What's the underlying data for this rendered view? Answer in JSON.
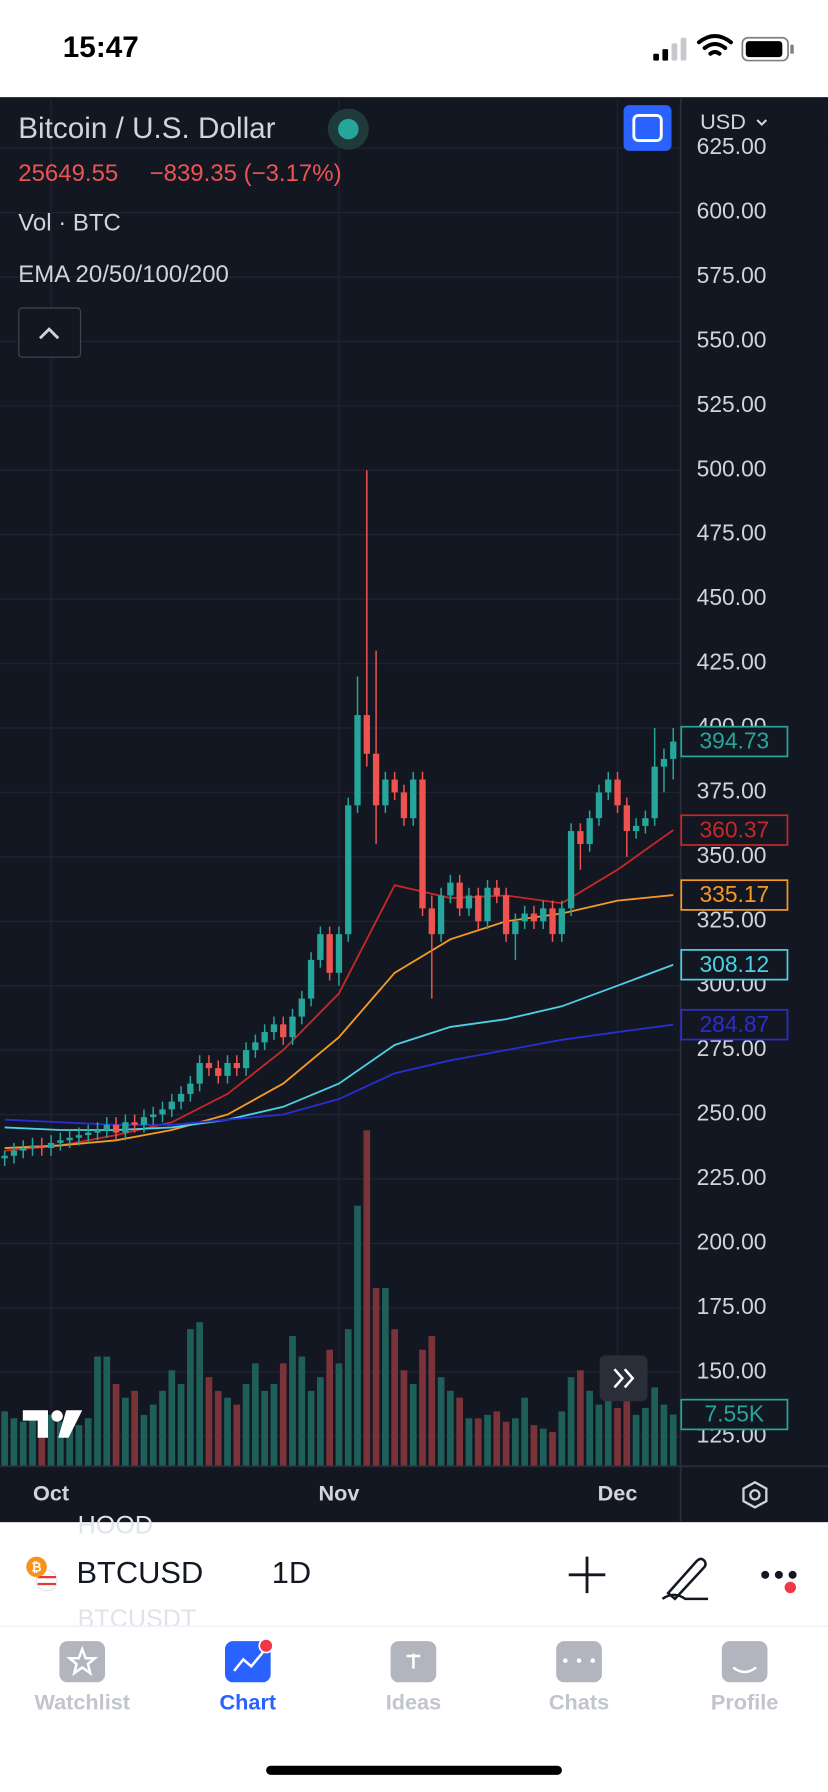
{
  "status_bar": {
    "time": "15:47"
  },
  "header": {
    "symbol_name": "Bitcoin / U.S. Dollar",
    "last_price": "25649.55",
    "change": "−839.35 (−3.17%)",
    "volume_indicator": "Vol · BTC",
    "ema_indicator": "EMA 20/50/100/200",
    "currency": "USD"
  },
  "chart_data": {
    "type": "candlestick",
    "up_color": "#26a69a",
    "down_color": "#ef5350",
    "open": [
      233,
      234,
      236,
      237,
      238,
      237,
      239,
      240,
      241,
      242,
      243,
      244,
      246,
      243,
      247,
      246,
      249,
      250,
      252,
      255,
      258,
      262,
      270,
      268,
      265,
      270,
      268,
      275,
      278,
      282,
      285,
      280,
      288,
      295,
      310,
      320,
      305,
      320,
      370,
      405,
      390,
      370,
      380,
      375,
      365,
      380,
      330,
      320,
      335,
      340,
      330,
      335,
      325,
      338,
      335,
      320,
      325,
      328,
      325,
      330,
      320,
      330,
      360,
      355,
      365,
      375,
      380,
      370,
      360,
      362,
      365,
      385,
      388
    ],
    "high": [
      236,
      239,
      240,
      241,
      241,
      242,
      243,
      244,
      245,
      246,
      247,
      249,
      249,
      250,
      250,
      252,
      253,
      255,
      258,
      261,
      265,
      273,
      273,
      271,
      273,
      273,
      278,
      281,
      285,
      288,
      288,
      291,
      298,
      313,
      323,
      323,
      323,
      373,
      420,
      500,
      430,
      383,
      383,
      378,
      383,
      383,
      335,
      338,
      343,
      343,
      338,
      338,
      341,
      341,
      338,
      328,
      331,
      331,
      333,
      333,
      333,
      363,
      363,
      368,
      378,
      383,
      383,
      373,
      365,
      368,
      400,
      392,
      400
    ],
    "low": [
      230,
      231,
      233,
      234,
      234,
      234,
      236,
      237,
      238,
      239,
      240,
      241,
      240,
      240,
      243,
      243,
      246,
      247,
      249,
      252,
      255,
      259,
      265,
      262,
      262,
      265,
      265,
      272,
      275,
      279,
      277,
      277,
      285,
      292,
      307,
      302,
      300,
      317,
      367,
      385,
      355,
      367,
      372,
      362,
      362,
      327,
      295,
      317,
      332,
      327,
      327,
      322,
      322,
      332,
      317,
      310,
      322,
      322,
      322,
      317,
      317,
      327,
      345,
      352,
      362,
      372,
      367,
      350,
      357,
      359,
      362,
      375,
      380
    ],
    "close": [
      234,
      236,
      237,
      238,
      237,
      239,
      240,
      241,
      242,
      243,
      244,
      246,
      243,
      247,
      246,
      249,
      250,
      252,
      255,
      258,
      262,
      270,
      268,
      265,
      270,
      268,
      275,
      278,
      282,
      285,
      280,
      288,
      295,
      310,
      320,
      305,
      320,
      370,
      405,
      390,
      370,
      380,
      375,
      365,
      380,
      330,
      320,
      335,
      340,
      330,
      335,
      325,
      338,
      335,
      320,
      325,
      328,
      325,
      330,
      320,
      330,
      360,
      355,
      365,
      375,
      380,
      370,
      360,
      362,
      365,
      385,
      388,
      394.73
    ],
    "xlim": [
      -0.5,
      72.8
    ],
    "xticks": [
      {
        "value": 5,
        "label": "Oct"
      },
      {
        "value": 36,
        "label": "Nov"
      },
      {
        "value": 66,
        "label": "Dec"
      }
    ],
    "ylim": [
      113.5,
      644.8
    ],
    "yticks": [
      {
        "value": 125,
        "label": "125.00"
      },
      {
        "value": 150,
        "label": "150.00"
      },
      {
        "value": 175,
        "label": "175.00"
      },
      {
        "value": 200,
        "label": "200.00"
      },
      {
        "value": 225,
        "label": "225.00"
      },
      {
        "value": 250,
        "label": "250.00"
      },
      {
        "value": 275,
        "label": "275.00"
      },
      {
        "value": 300,
        "label": "300.00"
      },
      {
        "value": 325,
        "label": "325.00"
      },
      {
        "value": 350,
        "label": "350.00"
      },
      {
        "value": 375,
        "label": "375.00"
      },
      {
        "value": 400,
        "label": "400.00"
      },
      {
        "value": 425,
        "label": "425.00"
      },
      {
        "value": 450,
        "label": "450.00"
      },
      {
        "value": 475,
        "label": "475.00"
      },
      {
        "value": 500,
        "label": "500.00"
      },
      {
        "value": 525,
        "label": "525.00"
      },
      {
        "value": 550,
        "label": "550.00"
      },
      {
        "value": 575,
        "label": "575.00"
      },
      {
        "value": 600,
        "label": "600.00"
      },
      {
        "value": 625,
        "label": "625.00"
      }
    ],
    "grid": true,
    "volume": {
      "ylim": [
        0,
        50000
      ],
      "values": [
        8000,
        7000,
        6500,
        7000,
        6000,
        7500,
        6500,
        7000,
        6000,
        7000,
        16000,
        16000,
        12000,
        10000,
        11000,
        7500,
        9000,
        11000,
        14000,
        12000,
        20000,
        21000,
        13000,
        11000,
        10000,
        9000,
        12000,
        15000,
        11000,
        12000,
        15000,
        19000,
        16000,
        11000,
        13000,
        17000,
        15000,
        20000,
        38000,
        49000,
        26000,
        26000,
        20000,
        14000,
        12000,
        17000,
        19000,
        13000,
        11000,
        10000,
        7000,
        7000,
        7500,
        8000,
        6500,
        7000,
        10000,
        6000,
        5500,
        5000,
        8000,
        13000,
        14000,
        11000,
        9000,
        10500,
        8500,
        9500,
        7500,
        8500,
        11500,
        9000,
        7550
      ],
      "value_labels": [
        null,
        null,
        null,
        null,
        null,
        null,
        null,
        null,
        null,
        null,
        null,
        null,
        null,
        null,
        null,
        null,
        null,
        null,
        null,
        null,
        null,
        null,
        null,
        null,
        null,
        null,
        null,
        null,
        null,
        null,
        null,
        null,
        null,
        null,
        null,
        null,
        null,
        null,
        null,
        null,
        null,
        null,
        null,
        null,
        null,
        null,
        null,
        null,
        null,
        null,
        null,
        null,
        null,
        null,
        null,
        null,
        null,
        null,
        null,
        null,
        null,
        null,
        null,
        null,
        null,
        null,
        null,
        null,
        null,
        null,
        null,
        null,
        "7.55K"
      ],
      "up_color": "#1f5f5a",
      "down_color": "#7a3338"
    },
    "series": [
      {
        "color": "#c62828",
        "x": [
          0,
          6,
          12,
          18,
          24,
          30,
          36,
          42,
          48,
          54,
          60,
          66,
          72
        ],
        "values": [
          236,
          238,
          242,
          247,
          258,
          275,
          297,
          339,
          334,
          335,
          332,
          345,
          360.37
        ]
      },
      {
        "color": "#f59a23",
        "x": [
          0,
          6,
          12,
          18,
          24,
          30,
          36,
          42,
          48,
          54,
          60,
          66,
          72
        ],
        "values": [
          237,
          238,
          240,
          244,
          250,
          262,
          280,
          305,
          318,
          325,
          328,
          333,
          335.17
        ]
      },
      {
        "color": "#4dd0e1",
        "x": [
          0,
          6,
          12,
          18,
          24,
          30,
          36,
          42,
          48,
          54,
          60,
          66,
          72
        ],
        "values": [
          245,
          244,
          244,
          245,
          248,
          253,
          262,
          277,
          284,
          287,
          292,
          300,
          308.12
        ]
      },
      {
        "color": "#2a2ed0",
        "x": [
          0,
          6,
          12,
          18,
          24,
          30,
          36,
          42,
          48,
          54,
          60,
          66,
          72
        ],
        "values": [
          248,
          247,
          246,
          246,
          248,
          250,
          256,
          266,
          271,
          275,
          279,
          282,
          284.87
        ]
      }
    ]
  },
  "toolbar": {
    "list_above": "HOOD",
    "symbol": "BTCUSD",
    "interval": "1D",
    "list_below": "BTCUSDT"
  },
  "nav": {
    "items": [
      "Watchlist",
      "Chart",
      "Ideas",
      "Chats",
      "Profile"
    ],
    "active": 1
  }
}
